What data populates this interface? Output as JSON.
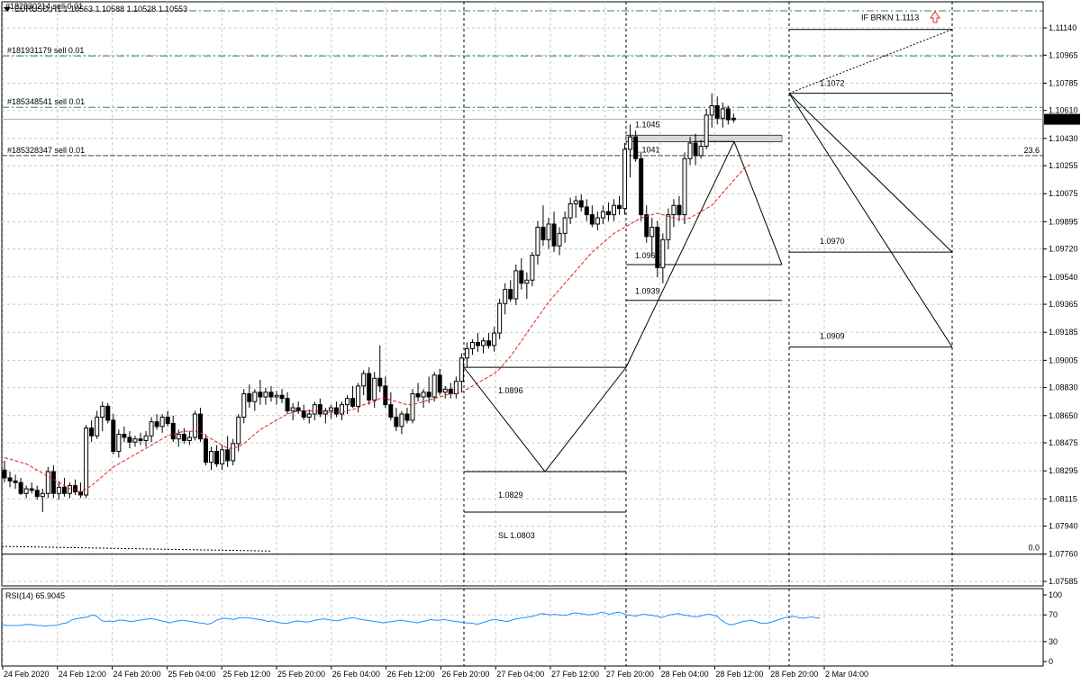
{
  "chart_data": {
    "type": "candlestick",
    "symbol_header": "EURUSD,H1  1.10563 1.10588 1.10528 1.10553",
    "top_order_label": "#182830214 sell 0.01",
    "current_price_label": "1.10553",
    "current_price": 1.10553,
    "price_ticks": [
      "1.11140",
      "1.10965",
      "1.10785",
      "1.10610",
      "1.10430",
      "1.10255",
      "1.10075",
      "1.09895",
      "1.09720",
      "1.09540",
      "1.09365",
      "1.09185",
      "1.09005",
      "1.08830",
      "1.08650",
      "1.08475",
      "1.08295",
      "1.08115",
      "1.07940",
      "1.07760",
      "1.07585"
    ],
    "time_ticks": [
      "24 Feb 2020",
      "24 Feb 12:00",
      "24 Feb 20:00",
      "25 Feb 04:00",
      "25 Feb 12:00",
      "25 Feb 20:00",
      "26 Feb 04:00",
      "26 Feb 12:00",
      "26 Feb 20:00",
      "27 Feb 04:00",
      "27 Feb 12:00",
      "27 Feb 20:00",
      "28 Feb 04:00",
      "28 Feb 12:00",
      "28 Feb 20:00",
      "2 Mar 04:00"
    ],
    "order_lines": [
      {
        "label": "#181931179 sell 0.01",
        "price": 1.1096
      },
      {
        "label": "#185348541 sell 0.01",
        "price": 1.1063
      },
      {
        "label": "#185328347 sell 0.01",
        "price": 1.1032
      }
    ],
    "level_labels": [
      {
        "label": "IF BRKN 1.1113",
        "price": 1.1113
      },
      {
        "label": "1.1072",
        "price": 1.1072
      },
      {
        "label": "1.1045",
        "price": 1.1045
      },
      {
        "label": "1.1041",
        "price": 1.1041
      },
      {
        "label": "1.0970",
        "price": 1.097
      },
      {
        "label": "1.0962",
        "price": 1.0962
      },
      {
        "label": "1.0939",
        "price": 1.0939
      },
      {
        "label": "1.0909",
        "price": 1.0909
      },
      {
        "label": "1.0896",
        "price": 1.0896
      },
      {
        "label": "1.0829",
        "price": 1.0829
      },
      {
        "label": "SL 1.0803",
        "price": 1.0803
      }
    ],
    "fib_labels": [
      "23.6",
      "0.0"
    ],
    "rsi": {
      "label": "RSI(14) 65.9045",
      "levels": [
        "100",
        "70",
        "30",
        "0"
      ],
      "values": [
        55,
        54,
        54,
        54,
        54,
        55,
        56,
        55,
        54,
        54,
        53,
        54,
        54,
        55,
        57,
        58,
        62,
        64,
        65,
        66,
        67,
        70,
        68,
        62,
        60,
        61,
        60,
        62,
        62,
        61,
        60,
        61,
        62,
        63,
        64,
        64,
        63,
        61,
        60,
        58,
        60,
        61,
        62,
        61,
        60,
        59,
        58,
        57,
        56,
        58,
        62,
        64,
        65,
        64,
        63,
        65,
        66,
        66,
        65,
        64,
        63,
        62,
        60,
        61,
        59,
        58,
        57,
        58,
        60,
        61,
        60,
        59,
        60,
        62,
        63,
        64,
        63,
        62,
        61,
        62,
        64,
        65,
        66,
        64,
        63,
        62,
        61,
        60,
        59,
        58,
        59,
        60,
        61,
        62,
        61,
        60,
        59,
        58,
        60,
        61,
        63,
        62,
        62,
        63,
        62,
        61,
        60,
        59,
        58,
        58,
        57,
        56,
        58,
        60,
        62,
        63,
        62,
        61,
        60,
        62,
        64,
        65,
        66,
        67,
        68,
        70,
        72,
        71,
        70,
        71,
        70,
        69,
        70,
        72,
        73,
        72,
        71,
        70,
        71,
        72,
        74,
        72,
        71,
        73,
        74,
        72,
        70,
        69,
        68,
        70,
        71,
        70,
        69,
        68,
        66,
        68,
        70,
        71,
        72,
        70,
        69,
        68,
        67,
        68,
        70,
        71,
        70,
        68,
        62,
        58,
        55,
        56,
        58,
        60,
        61,
        62,
        60,
        58,
        57,
        58,
        60,
        62,
        64,
        66,
        67,
        68,
        66,
        65,
        66,
        67,
        66,
        65
      ]
    },
    "candles": [
      {
        "o": 1.083,
        "h": 1.0836,
        "l": 1.0822,
        "c": 1.0825
      },
      {
        "o": 1.0825,
        "h": 1.0829,
        "l": 1.0819,
        "c": 1.0823
      },
      {
        "o": 1.0823,
        "h": 1.0827,
        "l": 1.0818,
        "c": 1.0822
      },
      {
        "o": 1.0822,
        "h": 1.0825,
        "l": 1.0814,
        "c": 1.0815
      },
      {
        "o": 1.0815,
        "h": 1.082,
        "l": 1.0812,
        "c": 1.0818
      },
      {
        "o": 1.0818,
        "h": 1.0822,
        "l": 1.0815,
        "c": 1.0817
      },
      {
        "o": 1.0817,
        "h": 1.082,
        "l": 1.0811,
        "c": 1.0813
      },
      {
        "o": 1.0813,
        "h": 1.0818,
        "l": 1.0803,
        "c": 1.0815
      },
      {
        "o": 1.0815,
        "h": 1.0832,
        "l": 1.0812,
        "c": 1.0829
      },
      {
        "o": 1.0829,
        "h": 1.0833,
        "l": 1.0812,
        "c": 1.0815
      },
      {
        "o": 1.0815,
        "h": 1.0823,
        "l": 1.0811,
        "c": 1.0819
      },
      {
        "o": 1.0819,
        "h": 1.0825,
        "l": 1.0813,
        "c": 1.0815
      },
      {
        "o": 1.0815,
        "h": 1.0822,
        "l": 1.0812,
        "c": 1.082
      },
      {
        "o": 1.082,
        "h": 1.0824,
        "l": 1.0814,
        "c": 1.0816
      },
      {
        "o": 1.0816,
        "h": 1.0822,
        "l": 1.0812,
        "c": 1.0814
      },
      {
        "o": 1.0814,
        "h": 1.0859,
        "l": 1.0812,
        "c": 1.0857
      },
      {
        "o": 1.0857,
        "h": 1.0862,
        "l": 1.0848,
        "c": 1.0852
      },
      {
        "o": 1.0852,
        "h": 1.0868,
        "l": 1.085,
        "c": 1.0864
      },
      {
        "o": 1.0864,
        "h": 1.0874,
        "l": 1.0855,
        "c": 1.0871
      },
      {
        "o": 1.0871,
        "h": 1.0873,
        "l": 1.086,
        "c": 1.0862
      },
      {
        "o": 1.0862,
        "h": 1.0866,
        "l": 1.084,
        "c": 1.0842
      },
      {
        "o": 1.0842,
        "h": 1.0856,
        "l": 1.0838,
        "c": 1.0853
      },
      {
        "o": 1.0853,
        "h": 1.0858,
        "l": 1.0848,
        "c": 1.0851
      },
      {
        "o": 1.0851,
        "h": 1.0855,
        "l": 1.0844,
        "c": 1.0848
      },
      {
        "o": 1.0848,
        "h": 1.0852,
        "l": 1.0845,
        "c": 1.085
      },
      {
        "o": 1.085,
        "h": 1.0854,
        "l": 1.0846,
        "c": 1.0849
      },
      {
        "o": 1.0849,
        "h": 1.0855,
        "l": 1.0845,
        "c": 1.0852
      },
      {
        "o": 1.0852,
        "h": 1.0864,
        "l": 1.0848,
        "c": 1.0861
      },
      {
        "o": 1.0861,
        "h": 1.0866,
        "l": 1.0856,
        "c": 1.0858
      },
      {
        "o": 1.0858,
        "h": 1.0866,
        "l": 1.0854,
        "c": 1.0864
      },
      {
        "o": 1.0864,
        "h": 1.0868,
        "l": 1.0858,
        "c": 1.086
      },
      {
        "o": 1.086,
        "h": 1.0865,
        "l": 1.0848,
        "c": 1.085
      },
      {
        "o": 1.085,
        "h": 1.0856,
        "l": 1.0845,
        "c": 1.0853
      },
      {
        "o": 1.0853,
        "h": 1.0857,
        "l": 1.0847,
        "c": 1.0849
      },
      {
        "o": 1.0849,
        "h": 1.0855,
        "l": 1.0846,
        "c": 1.0851
      },
      {
        "o": 1.0851,
        "h": 1.0868,
        "l": 1.0849,
        "c": 1.0866
      },
      {
        "o": 1.0866,
        "h": 1.087,
        "l": 1.0848,
        "c": 1.085
      },
      {
        "o": 1.085,
        "h": 1.0853,
        "l": 1.0833,
        "c": 1.0835
      },
      {
        "o": 1.0835,
        "h": 1.0845,
        "l": 1.083,
        "c": 1.0842
      },
      {
        "o": 1.0842,
        "h": 1.0846,
        "l": 1.0832,
        "c": 1.0834
      },
      {
        "o": 1.0834,
        "h": 1.0846,
        "l": 1.083,
        "c": 1.0843
      },
      {
        "o": 1.0843,
        "h": 1.0852,
        "l": 1.0832,
        "c": 1.0836
      },
      {
        "o": 1.0836,
        "h": 1.085,
        "l": 1.0833,
        "c": 1.0847
      },
      {
        "o": 1.0847,
        "h": 1.0866,
        "l": 1.0842,
        "c": 1.0864
      },
      {
        "o": 1.0864,
        "h": 1.0882,
        "l": 1.086,
        "c": 1.0879
      },
      {
        "o": 1.0879,
        "h": 1.0885,
        "l": 1.087,
        "c": 1.0874
      },
      {
        "o": 1.0874,
        "h": 1.0882,
        "l": 1.0868,
        "c": 1.088
      },
      {
        "o": 1.088,
        "h": 1.0888,
        "l": 1.0872,
        "c": 1.0877
      },
      {
        "o": 1.0877,
        "h": 1.0883,
        "l": 1.0872,
        "c": 1.088
      },
      {
        "o": 1.088,
        "h": 1.0884,
        "l": 1.0874,
        "c": 1.0877
      },
      {
        "o": 1.0877,
        "h": 1.0881,
        "l": 1.0872,
        "c": 1.0878
      },
      {
        "o": 1.0878,
        "h": 1.0882,
        "l": 1.0873,
        "c": 1.0876
      },
      {
        "o": 1.0876,
        "h": 1.088,
        "l": 1.0866,
        "c": 1.0868
      },
      {
        "o": 1.0868,
        "h": 1.0873,
        "l": 1.0862,
        "c": 1.087
      },
      {
        "o": 1.087,
        "h": 1.0874,
        "l": 1.0866,
        "c": 1.0868
      },
      {
        "o": 1.0868,
        "h": 1.0872,
        "l": 1.0862,
        "c": 1.0864
      },
      {
        "o": 1.0864,
        "h": 1.0869,
        "l": 1.086,
        "c": 1.0866
      },
      {
        "o": 1.0866,
        "h": 1.0874,
        "l": 1.0862,
        "c": 1.0872
      },
      {
        "o": 1.0872,
        "h": 1.0876,
        "l": 1.0864,
        "c": 1.0866
      },
      {
        "o": 1.0866,
        "h": 1.087,
        "l": 1.086,
        "c": 1.0868
      },
      {
        "o": 1.0868,
        "h": 1.0872,
        "l": 1.0863,
        "c": 1.087
      },
      {
        "o": 1.087,
        "h": 1.0874,
        "l": 1.0864,
        "c": 1.0866
      },
      {
        "o": 1.0866,
        "h": 1.0874,
        "l": 1.0862,
        "c": 1.0872
      },
      {
        "o": 1.0872,
        "h": 1.0878,
        "l": 1.0866,
        "c": 1.0876
      },
      {
        "o": 1.0876,
        "h": 1.0884,
        "l": 1.087,
        "c": 1.0871
      },
      {
        "o": 1.0871,
        "h": 1.0886,
        "l": 1.0867,
        "c": 1.0884
      },
      {
        "o": 1.0884,
        "h": 1.0894,
        "l": 1.0878,
        "c": 1.0892
      },
      {
        "o": 1.0892,
        "h": 1.0896,
        "l": 1.0872,
        "c": 1.0875
      },
      {
        "o": 1.0875,
        "h": 1.0893,
        "l": 1.087,
        "c": 1.0889
      },
      {
        "o": 1.0889,
        "h": 1.091,
        "l": 1.088,
        "c": 1.0884
      },
      {
        "o": 1.0884,
        "h": 1.089,
        "l": 1.087,
        "c": 1.0872
      },
      {
        "o": 1.0872,
        "h": 1.088,
        "l": 1.0862,
        "c": 1.0864
      },
      {
        "o": 1.0864,
        "h": 1.087,
        "l": 1.0855,
        "c": 1.0858
      },
      {
        "o": 1.0858,
        "h": 1.0868,
        "l": 1.0853,
        "c": 1.0866
      },
      {
        "o": 1.0866,
        "h": 1.087,
        "l": 1.086,
        "c": 1.0862
      },
      {
        "o": 1.0862,
        "h": 1.0882,
        "l": 1.086,
        "c": 1.0879
      },
      {
        "o": 1.0879,
        "h": 1.0886,
        "l": 1.0874,
        "c": 1.0877
      },
      {
        "o": 1.0877,
        "h": 1.0882,
        "l": 1.087,
        "c": 1.088
      },
      {
        "o": 1.088,
        "h": 1.089,
        "l": 1.0873,
        "c": 1.0877
      },
      {
        "o": 1.0877,
        "h": 1.0893,
        "l": 1.0874,
        "c": 1.0891
      },
      {
        "o": 1.0891,
        "h": 1.0895,
        "l": 1.0878,
        "c": 1.088
      },
      {
        "o": 1.088,
        "h": 1.0884,
        "l": 1.0876,
        "c": 1.0882
      },
      {
        "o": 1.0882,
        "h": 1.0886,
        "l": 1.0876,
        "c": 1.0879
      },
      {
        "o": 1.0879,
        "h": 1.089,
        "l": 1.0876,
        "c": 1.0887
      },
      {
        "o": 1.0887,
        "h": 1.0905,
        "l": 1.088,
        "c": 1.0902
      },
      {
        "o": 1.0902,
        "h": 1.0912,
        "l": 1.0896,
        "c": 1.0908
      },
      {
        "o": 1.0908,
        "h": 1.0914,
        "l": 1.0904,
        "c": 1.0912
      },
      {
        "o": 1.0912,
        "h": 1.0918,
        "l": 1.0906,
        "c": 1.091
      },
      {
        "o": 1.091,
        "h": 1.0915,
        "l": 1.0905,
        "c": 1.0913
      },
      {
        "o": 1.0913,
        "h": 1.0918,
        "l": 1.0908,
        "c": 1.091
      },
      {
        "o": 1.091,
        "h": 1.0922,
        "l": 1.0906,
        "c": 1.0918
      },
      {
        "o": 1.0918,
        "h": 1.094,
        "l": 1.0914,
        "c": 1.0937
      },
      {
        "o": 1.0937,
        "h": 1.095,
        "l": 1.093,
        "c": 1.0946
      },
      {
        "o": 1.0946,
        "h": 1.0952,
        "l": 1.0938,
        "c": 1.094
      },
      {
        "o": 1.094,
        "h": 1.0962,
        "l": 1.0936,
        "c": 1.0958
      },
      {
        "o": 1.0958,
        "h": 1.0966,
        "l": 1.0946,
        "c": 1.095
      },
      {
        "o": 1.095,
        "h": 1.0957,
        "l": 1.094,
        "c": 1.0952
      },
      {
        "o": 1.0952,
        "h": 1.097,
        "l": 1.0948,
        "c": 1.0968
      },
      {
        "o": 1.0968,
        "h": 1.099,
        "l": 1.0962,
        "c": 1.0986
      },
      {
        "o": 1.0986,
        "h": 1.1,
        "l": 1.0974,
        "c": 1.0978
      },
      {
        "o": 1.0978,
        "h": 1.0992,
        "l": 1.0972,
        "c": 1.0988
      },
      {
        "o": 1.0988,
        "h": 1.0996,
        "l": 1.097,
        "c": 1.0974
      },
      {
        "o": 1.0974,
        "h": 1.0986,
        "l": 1.0968,
        "c": 1.0982
      },
      {
        "o": 1.0982,
        "h": 1.0996,
        "l": 1.0976,
        "c": 1.0992
      },
      {
        "o": 1.0992,
        "h": 1.1005,
        "l": 1.0988,
        "c": 1.1001
      },
      {
        "o": 1.1001,
        "h": 1.1006,
        "l": 1.0992,
        "c": 1.1003
      },
      {
        "o": 1.1003,
        "h": 1.1007,
        "l": 1.0996,
        "c": 1.0999
      },
      {
        "o": 1.0999,
        "h": 1.1004,
        "l": 1.099,
        "c": 1.0994
      },
      {
        "o": 1.0994,
        "h": 1.1,
        "l": 1.0986,
        "c": 1.0988
      },
      {
        "o": 1.0988,
        "h": 1.0996,
        "l": 1.0984,
        "c": 1.0992
      },
      {
        "o": 1.0992,
        "h": 1.1,
        "l": 1.0988,
        "c": 1.0996
      },
      {
        "o": 1.0996,
        "h": 1.1002,
        "l": 1.099,
        "c": 1.0994
      },
      {
        "o": 1.0994,
        "h": 1.1004,
        "l": 1.099,
        "c": 1.1
      },
      {
        "o": 1.1,
        "h": 1.1006,
        "l": 1.0994,
        "c": 1.0998
      },
      {
        "o": 1.0998,
        "h": 1.104,
        "l": 1.0994,
        "c": 1.1036
      },
      {
        "o": 1.1036,
        "h": 1.1052,
        "l": 1.1018,
        "c": 1.1044
      },
      {
        "o": 1.1044,
        "h": 1.1048,
        "l": 1.1028,
        "c": 1.103
      },
      {
        "o": 1.103,
        "h": 1.1034,
        "l": 1.099,
        "c": 1.0994
      },
      {
        "o": 1.0994,
        "h": 1.1,
        "l": 1.0976,
        "c": 1.098
      },
      {
        "o": 1.098,
        "h": 1.0992,
        "l": 1.0968,
        "c": 1.0986
      },
      {
        "o": 1.0986,
        "h": 1.099,
        "l": 1.0954,
        "c": 1.096
      },
      {
        "o": 1.096,
        "h": 1.0982,
        "l": 1.095,
        "c": 1.0978
      },
      {
        "o": 1.0978,
        "h": 1.0998,
        "l": 1.0972,
        "c": 1.0994
      },
      {
        "o": 1.0994,
        "h": 1.1004,
        "l": 1.0986,
        "c": 1.1
      },
      {
        "o": 1.1,
        "h": 1.1006,
        "l": 1.099,
        "c": 1.0994
      },
      {
        "o": 1.0994,
        "h": 1.1034,
        "l": 1.0988,
        "c": 1.103
      },
      {
        "o": 1.103,
        "h": 1.1044,
        "l": 1.1026,
        "c": 1.104
      },
      {
        "o": 1.104,
        "h": 1.1046,
        "l": 1.1026,
        "c": 1.1032
      },
      {
        "o": 1.1032,
        "h": 1.1042,
        "l": 1.103,
        "c": 1.1038
      },
      {
        "o": 1.1038,
        "h": 1.1062,
        "l": 1.1036,
        "c": 1.1058
      },
      {
        "o": 1.1058,
        "h": 1.1072,
        "l": 1.105,
        "c": 1.1064
      },
      {
        "o": 1.1064,
        "h": 1.107,
        "l": 1.1052,
        "c": 1.1056
      },
      {
        "o": 1.1056,
        "h": 1.1066,
        "l": 1.105,
        "c": 1.1062
      },
      {
        "o": 1.1062,
        "h": 1.1064,
        "l": 1.1052,
        "c": 1.1055
      },
      {
        "o": 1.1056,
        "h": 1.1059,
        "l": 1.1053,
        "c": 1.1055
      }
    ],
    "ma": [
      1.0838,
      1.0837,
      1.0836,
      1.0835,
      1.0834,
      1.0832,
      1.083,
      1.0828,
      1.0826,
      1.0824,
      1.0822,
      1.082,
      1.0818,
      1.0817,
      1.0816,
      1.0818,
      1.082,
      1.0823,
      1.0826,
      1.0829,
      1.0832,
      1.0834,
      1.0836,
      1.0838,
      1.084,
      1.0842,
      1.0844,
      1.0846,
      1.0848,
      1.085,
      1.0852,
      1.0853,
      1.0854,
      1.0855,
      1.0855,
      1.0855,
      1.0854,
      1.0852,
      1.085,
      1.0848,
      1.0846,
      1.0844,
      1.0844,
      1.0845,
      1.0847,
      1.085,
      1.0853,
      1.0856,
      1.0858,
      1.086,
      1.0862,
      1.0864,
      1.0866,
      1.0867,
      1.0868,
      1.0868,
      1.0868,
      1.0868,
      1.0868,
      1.0867,
      1.0867,
      1.0867,
      1.0867,
      1.0868,
      1.0869,
      1.087,
      1.0872,
      1.0873,
      1.0874,
      1.0876,
      1.0876,
      1.0875,
      1.0874,
      1.0873,
      1.0872,
      1.0872,
      1.0873,
      1.0874,
      1.0875,
      1.0876,
      1.0877,
      1.0878,
      1.0879,
      1.0879,
      1.088,
      1.0882,
      1.0884,
      1.0886,
      1.0888,
      1.089,
      1.0892,
      1.0895,
      1.0899,
      1.0903,
      1.0908,
      1.0913,
      1.0918,
      1.0923,
      1.0928,
      1.0933,
      1.0938,
      1.0942,
      1.0946,
      1.095,
      1.0954,
      1.0958,
      1.0962,
      1.0966,
      1.097,
      1.0973,
      1.0976,
      1.0979,
      1.0982,
      1.0984,
      1.0986,
      1.0988,
      1.099,
      1.0992,
      1.0993,
      1.0994,
      1.0995,
      1.0994,
      1.0993,
      1.0992,
      1.0991,
      1.0991,
      1.0992,
      1.0994,
      1.0996,
      1.0998,
      1.1,
      1.1004,
      1.1008,
      1.1012,
      1.1016,
      1.102,
      1.1024,
      1.1026
    ]
  }
}
